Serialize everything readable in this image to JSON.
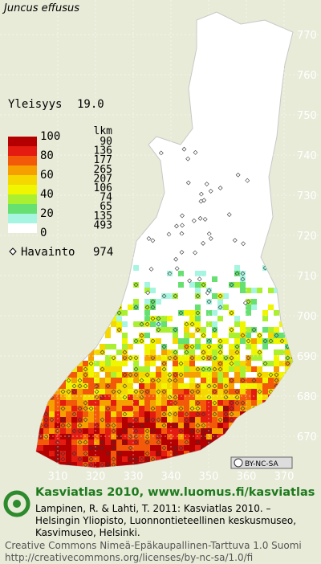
{
  "title": "Juncus effusus",
  "frequency": {
    "label": "Yleisyys",
    "value": "19.0"
  },
  "legend": {
    "unit_label": "lkm",
    "scale_labels": [
      "100",
      "80",
      "60",
      "40",
      "20",
      "0"
    ],
    "bands": [
      {
        "color": "#b40000",
        "count": "90"
      },
      {
        "color": "#e41b10",
        "count": "136"
      },
      {
        "color": "#f25a0a",
        "count": "177"
      },
      {
        "color": "#f5a000",
        "count": "265"
      },
      {
        "color": "#f5d800",
        "count": "207"
      },
      {
        "color": "#f0f500",
        "count": "106"
      },
      {
        "color": "#aaf030",
        "count": "74"
      },
      {
        "color": "#66e070",
        "count": "65"
      },
      {
        "color": "#a6f5e0",
        "count": "135"
      },
      {
        "color": "#ffffff",
        "count": "493"
      }
    ]
  },
  "observations": {
    "label": "Havainto",
    "value": "974"
  },
  "grid": {
    "y_labels": [
      "770",
      "760",
      "750",
      "740",
      "730",
      "720",
      "710",
      "700",
      "690",
      "680",
      "670"
    ],
    "x_labels": [
      "310",
      "320",
      "330",
      "340",
      "350",
      "360",
      "370"
    ]
  },
  "badge": "BY-NC-SA",
  "footer": {
    "heading": "Kasviatlas 2010, www.luomus.fi/kasviatlas",
    "citation": [
      "Lampinen, R. & Lahti, T. 2011: Kasviatlas 2010. –",
      "Helsingin Yliopisto, Luonnontieteellinen keskusmuseo,",
      "Kasvimuseo, Helsinki."
    ],
    "license": [
      "Creative Commons Nimeä-Epäkaupallinen-Tarttuva 1.0 Suomi",
      "http://creativecommons.org/licenses/by-nc-sa/1.0/fi"
    ]
  }
}
